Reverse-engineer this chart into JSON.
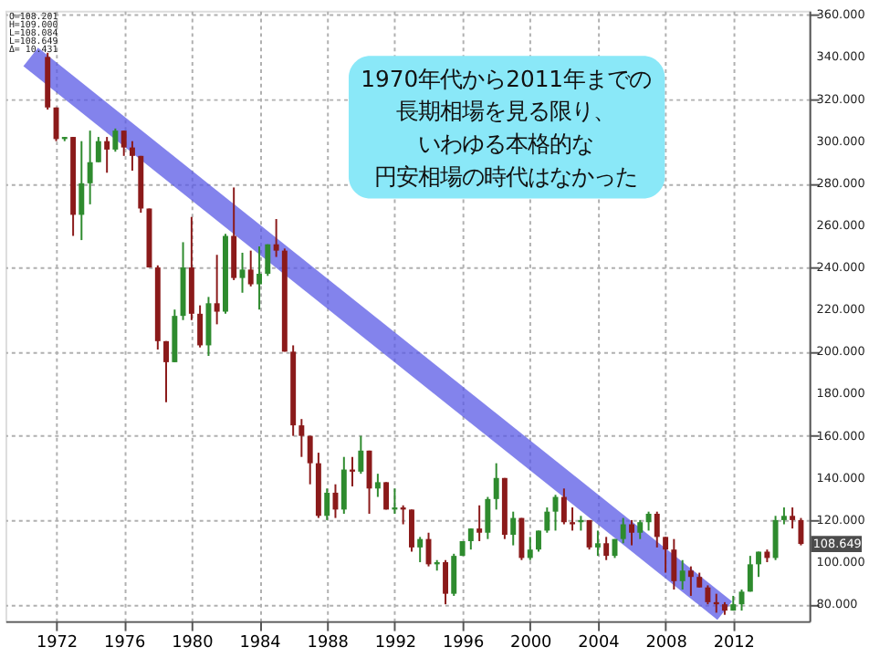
{
  "chart_data": {
    "type": "candlestick",
    "x": [
      "1971-07",
      "1972-01",
      "1972-07",
      "1973-01",
      "1973-07",
      "1974-01",
      "1974-07",
      "1975-01",
      "1975-07",
      "1976-01",
      "1976-07",
      "1977-01",
      "1977-07",
      "1978-01",
      "1978-07",
      "1979-01",
      "1979-07",
      "1980-01",
      "1980-07",
      "1981-01",
      "1981-07",
      "1982-01",
      "1982-07",
      "1983-01",
      "1983-07",
      "1984-01",
      "1984-07",
      "1985-01",
      "1985-07",
      "1986-01",
      "1986-07",
      "1987-01",
      "1987-07",
      "1988-01",
      "1988-07",
      "1989-01",
      "1989-07",
      "1990-01",
      "1990-07",
      "1991-01",
      "1991-07",
      "1992-01",
      "1992-07",
      "1993-01",
      "1993-07",
      "1994-01",
      "1994-07",
      "1995-01",
      "1995-07",
      "1996-01",
      "1996-07",
      "1997-01",
      "1997-07",
      "1998-01",
      "1998-07",
      "1999-01",
      "1999-07",
      "2000-01",
      "2000-07",
      "2001-01",
      "2001-07",
      "2002-01",
      "2002-07",
      "2003-01",
      "2003-07",
      "2004-01",
      "2004-07",
      "2005-01",
      "2005-07",
      "2006-01",
      "2006-07",
      "2007-01",
      "2007-07",
      "2008-01",
      "2008-07",
      "2009-01",
      "2009-07",
      "2010-01",
      "2010-07",
      "2011-01",
      "2011-07",
      "2012-01",
      "2012-07",
      "2013-01",
      "2013-07",
      "2014-01",
      "2014-07",
      "2015-01",
      "2015-07",
      "2016-01"
    ],
    "ohlc": [
      [
        340,
        342,
        315,
        316
      ],
      [
        316,
        316,
        300,
        301
      ],
      [
        301,
        302,
        300,
        302
      ],
      [
        302,
        302,
        255,
        265
      ],
      [
        265,
        300,
        253,
        280
      ],
      [
        280,
        305,
        270,
        290
      ],
      [
        290,
        302,
        290,
        300
      ],
      [
        300,
        302,
        285,
        296
      ],
      [
        296,
        306,
        295,
        305
      ],
      [
        305,
        305,
        293,
        297
      ],
      [
        297,
        300,
        286,
        293
      ],
      [
        293,
        293,
        266,
        268
      ],
      [
        268,
        268,
        240,
        240
      ],
      [
        240,
        241,
        201,
        205
      ],
      [
        205,
        205,
        176,
        195
      ],
      [
        195,
        220,
        195,
        217
      ],
      [
        217,
        252,
        215,
        240
      ],
      [
        240,
        264,
        215,
        218
      ],
      [
        218,
        222,
        202,
        203
      ],
      [
        203,
        226,
        198,
        223
      ],
      [
        223,
        246,
        213,
        219
      ],
      [
        219,
        256,
        218,
        255
      ],
      [
        255,
        278,
        234,
        235
      ],
      [
        235,
        247,
        228,
        239
      ],
      [
        239,
        248,
        231,
        232
      ],
      [
        232,
        250,
        220,
        237
      ],
      [
        237,
        251,
        236,
        251
      ],
      [
        251,
        263,
        245,
        248
      ],
      [
        248,
        249,
        200,
        200
      ],
      [
        200,
        203,
        160,
        165
      ],
      [
        165,
        168,
        150,
        160
      ],
      [
        160,
        160,
        137,
        147
      ],
      [
        147,
        152,
        121,
        122
      ],
      [
        122,
        135,
        120,
        133
      ],
      [
        133,
        137,
        121,
        125
      ],
      [
        125,
        150,
        123,
        144
      ],
      [
        144,
        150,
        136,
        143
      ],
      [
        143,
        160,
        142,
        153
      ],
      [
        153,
        153,
        123,
        135
      ],
      [
        135,
        142,
        131,
        138
      ],
      [
        138,
        138,
        125,
        125
      ],
      [
        125,
        135,
        123,
        126
      ],
      [
        126,
        127,
        118,
        125
      ],
      [
        125,
        125,
        105,
        107
      ],
      [
        107,
        112,
        100,
        111
      ],
      [
        111,
        114,
        98,
        99
      ],
      [
        99,
        101,
        96,
        100
      ],
      [
        100,
        101,
        80,
        85
      ],
      [
        85,
        104,
        84,
        103
      ],
      [
        103,
        110,
        103,
        110
      ],
      [
        110,
        116,
        106,
        116
      ],
      [
        116,
        127,
        110,
        114
      ],
      [
        114,
        131,
        111,
        130
      ],
      [
        130,
        147,
        125,
        140
      ],
      [
        140,
        140,
        111,
        113
      ],
      [
        113,
        124,
        108,
        121
      ],
      [
        121,
        121,
        101,
        102
      ],
      [
        102,
        112,
        101,
        106
      ],
      [
        106,
        115,
        105,
        115
      ],
      [
        115,
        126,
        114,
        124
      ],
      [
        124,
        132,
        115,
        131
      ],
      [
        131,
        135,
        118,
        119
      ],
      [
        119,
        126,
        115,
        118
      ],
      [
        119,
        122,
        115,
        120
      ],
      [
        120,
        120,
        106,
        107
      ],
      [
        107,
        115,
        103,
        109
      ],
      [
        109,
        112,
        101,
        103
      ],
      [
        103,
        111,
        102,
        111
      ],
      [
        111,
        121,
        109,
        118
      ],
      [
        118,
        120,
        108,
        114
      ],
      [
        114,
        120,
        111,
        119
      ],
      [
        119,
        124,
        115,
        123
      ],
      [
        123,
        124,
        107,
        112
      ],
      [
        112,
        112,
        95,
        106
      ],
      [
        106,
        111,
        87,
        91
      ],
      [
        91,
        101,
        87,
        96
      ],
      [
        96,
        98,
        84,
        93
      ],
      [
        93,
        95,
        88,
        88
      ],
      [
        88,
        89,
        80,
        81
      ],
      [
        81,
        85,
        76,
        80
      ],
      [
        80,
        81,
        75,
        77
      ],
      [
        77,
        84,
        77,
        80
      ],
      [
        80,
        87,
        77,
        86
      ],
      [
        86,
        103,
        86,
        99
      ],
      [
        99,
        105,
        93,
        105
      ],
      [
        105,
        106,
        100,
        102
      ],
      [
        102,
        122,
        101,
        120
      ],
      [
        120,
        126,
        118,
        122
      ],
      [
        122,
        126,
        116,
        120
      ],
      [
        120,
        121,
        108,
        108.649
      ]
    ],
    "series": [
      {
        "type": "line",
        "x": [
          "1970-07",
          "2011-07"
        ],
        "values": [
          340,
          77
        ],
        "color": "#5a5ae6"
      }
    ],
    "xlim": [
      "1969-01-01",
      "2016-07-01"
    ],
    "xticks": [
      "1972",
      "1976",
      "1980",
      "1984",
      "1988",
      "1992",
      "1996",
      "2000",
      "2004",
      "2008",
      "2012"
    ],
    "ylim": [
      72,
      362
    ],
    "yticks": [
      {
        "value": 80,
        "label": "80.000"
      },
      {
        "value": 100,
        "label": "100.000"
      },
      {
        "value": 120,
        "label": "120.000"
      },
      {
        "value": 140,
        "label": "140.000"
      },
      {
        "value": 160,
        "label": "160.000"
      },
      {
        "value": 180,
        "label": "180.000"
      },
      {
        "value": 200,
        "label": "200.000"
      },
      {
        "value": 220,
        "label": "220.000"
      },
      {
        "value": 240,
        "label": "240.000"
      },
      {
        "value": 260,
        "label": "260.000"
      },
      {
        "value": 280,
        "label": "280.000"
      },
      {
        "value": 300,
        "label": "300.000"
      },
      {
        "value": 320,
        "label": "320.000"
      },
      {
        "value": 340,
        "label": "340.000"
      },
      {
        "value": 360,
        "label": "360.000"
      }
    ],
    "grid": true,
    "annotations": [
      "1970年代から2011年までの",
      "長期相場を見る限り、",
      "いわゆる本格的な",
      "円安相場の時代はなかった",
      "O=108.201\nH=109.000\nL=108.084\nL=108.649\nΔ= 10.431",
      "108.649"
    ]
  }
}
